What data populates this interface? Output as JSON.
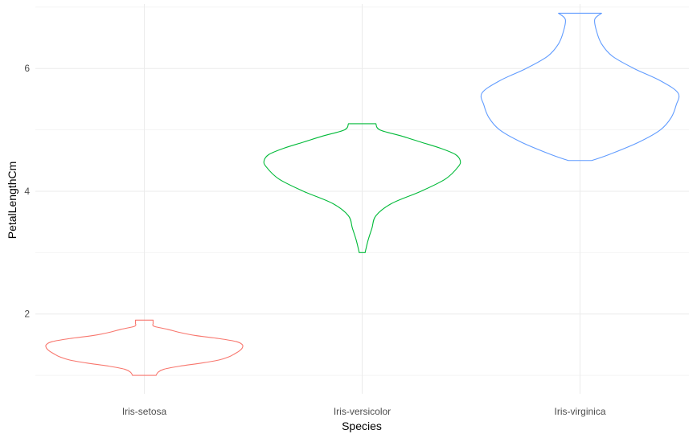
{
  "chart_data": {
    "type": "violin",
    "title": "",
    "xlabel": "Species",
    "ylabel": "PetalLengthCm",
    "ylim": [
      0.7,
      7.05
    ],
    "y_ticks": [
      2,
      4,
      6
    ],
    "y_tick_labels": [
      "2",
      "4",
      "6"
    ],
    "grid": true,
    "legend": "none",
    "categories": [
      "Iris-setosa",
      "Iris-versicolor",
      "Iris-virginica"
    ],
    "series": [
      {
        "category": "Iris-setosa",
        "color": "#F8766D",
        "min": 1.0,
        "max": 1.9,
        "profile": [
          [
            1.0,
            0.12
          ],
          [
            1.05,
            0.14
          ],
          [
            1.1,
            0.2
          ],
          [
            1.15,
            0.36
          ],
          [
            1.2,
            0.58
          ],
          [
            1.25,
            0.76
          ],
          [
            1.3,
            0.86
          ],
          [
            1.35,
            0.92
          ],
          [
            1.4,
            0.97
          ],
          [
            1.45,
            1.0
          ],
          [
            1.5,
            1.0
          ],
          [
            1.55,
            0.94
          ],
          [
            1.6,
            0.76
          ],
          [
            1.65,
            0.52
          ],
          [
            1.7,
            0.36
          ],
          [
            1.75,
            0.24
          ],
          [
            1.8,
            0.1
          ],
          [
            1.85,
            0.09
          ],
          [
            1.9,
            0.09
          ]
        ]
      },
      {
        "category": "Iris-versicolor",
        "color": "#00BA38",
        "min": 3.0,
        "max": 5.1,
        "profile": [
          [
            3.0,
            0.03
          ],
          [
            3.2,
            0.06
          ],
          [
            3.4,
            0.1
          ],
          [
            3.6,
            0.14
          ],
          [
            3.8,
            0.3
          ],
          [
            4.0,
            0.6
          ],
          [
            4.2,
            0.85
          ],
          [
            4.4,
            0.98
          ],
          [
            4.5,
            1.0
          ],
          [
            4.6,
            0.95
          ],
          [
            4.7,
            0.8
          ],
          [
            4.8,
            0.6
          ],
          [
            4.9,
            0.4
          ],
          [
            5.0,
            0.18
          ],
          [
            5.1,
            0.14
          ]
        ]
      },
      {
        "category": "Iris-virginica",
        "color": "#619CFF",
        "min": 4.5,
        "max": 6.9,
        "profile": [
          [
            4.5,
            0.12
          ],
          [
            4.6,
            0.3
          ],
          [
            4.8,
            0.6
          ],
          [
            5.0,
            0.82
          ],
          [
            5.2,
            0.93
          ],
          [
            5.4,
            0.98
          ],
          [
            5.6,
            1.0
          ],
          [
            5.8,
            0.82
          ],
          [
            6.0,
            0.55
          ],
          [
            6.2,
            0.33
          ],
          [
            6.4,
            0.22
          ],
          [
            6.6,
            0.17
          ],
          [
            6.8,
            0.15
          ],
          [
            6.9,
            0.22
          ]
        ]
      }
    ]
  }
}
